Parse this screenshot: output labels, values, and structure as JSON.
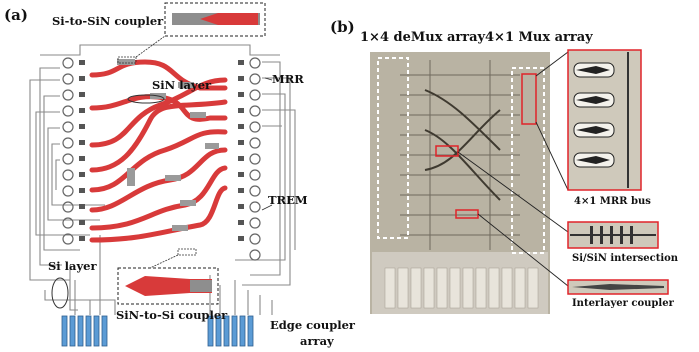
{
  "panel_a": {
    "tag": "(a)",
    "labels": {
      "si_to_sin": "Si-to-SiN coupler",
      "sin_layer": "SiN layer",
      "mrr": "MRR",
      "trem": "TREM",
      "si_layer": "Si layer",
      "sin_to_si": "SiN-to-Si coupler",
      "edge_coupler_1": "Edge coupler",
      "edge_coupler_2": "array"
    }
  },
  "panel_b": {
    "tag": "(b)",
    "labels": {
      "demux": "1×4 deMux array",
      "mux": "4×1 Mux array",
      "mrr_bus": "4×1 MRR bus",
      "intersection": "Si/SiN intersection",
      "interlayer": "Interlayer coupler"
    }
  },
  "colors": {
    "red_waveguide": "#d83a3a",
    "si_wire": "#7a7a7a",
    "edge_coupler_blue": "#5b9bd5",
    "inset_border": "#e0242a",
    "chip_bg": "#b9b3a3"
  }
}
